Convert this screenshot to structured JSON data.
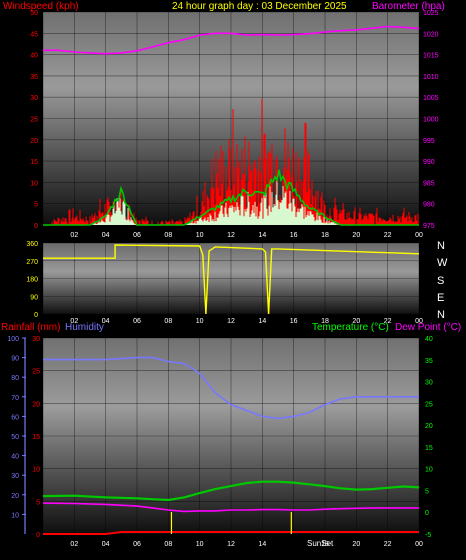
{
  "header": {
    "left": "Windspeed (kph)",
    "center": "24 hour graph day : 03 December 2025",
    "right": "Barometer (hpa)"
  },
  "colors": {
    "red": "#ff0000",
    "magenta": "#ff00ff",
    "yellow": "#ffff00",
    "green": "#00c800",
    "lightgreen": "#d8f8d0",
    "blue": "#7878ff",
    "axis_text": "#ffffff"
  },
  "x_ticks": [
    "02",
    "04",
    "06",
    "08",
    "10",
    "12",
    "14",
    "16",
    "18",
    "20",
    "22",
    "00"
  ],
  "panel1": {
    "left_ticks": [
      "0",
      "5",
      "10",
      "15",
      "20",
      "25",
      "30",
      "35",
      "40",
      "45",
      "50"
    ],
    "right_ticks": [
      "975",
      "980",
      "985",
      "990",
      "995",
      "1000",
      "1005",
      "1010",
      "1015",
      "1020",
      "1025"
    ]
  },
  "panel2": {
    "left_ticks": [
      "0",
      "90",
      "180",
      "270",
      "360"
    ],
    "compass": [
      "N",
      "W",
      "S",
      "E",
      "N"
    ]
  },
  "panel3": {
    "header_left_rain": "Rainfall (mm)",
    "header_left_hum": "Humidity",
    "header_right_temp": "Temperature (°C)",
    "header_right_dew": "Dew Point (°C)",
    "hum_ticks": [
      "10",
      "20",
      "30",
      "40",
      "50",
      "60",
      "70",
      "80",
      "90",
      "100"
    ],
    "rain_ticks": [
      "0",
      "5",
      "10",
      "15",
      "20",
      "25",
      "30"
    ],
    "temp_ticks": [
      "-5",
      "0",
      "5",
      "10",
      "15",
      "20",
      "25",
      "30",
      "35",
      "40"
    ],
    "sun_label": "SunSet"
  },
  "chart_data": [
    {
      "type": "line",
      "title": "24 hour graph day : 03 December 2025",
      "x_unit": "hour",
      "xlim": [
        0,
        24
      ],
      "left_axis": "Windspeed (kph)",
      "left_ylim": [
        0,
        50
      ],
      "right_axis": "Barometer (hpa)",
      "right_ylim": [
        975,
        1025
      ],
      "series": [
        {
          "name": "Barometer (hpa)",
          "axis": "right",
          "x": [
            0,
            1,
            2,
            3,
            4,
            5,
            6,
            7,
            8,
            9,
            10,
            11,
            12,
            13,
            14,
            15,
            16,
            17,
            18,
            19,
            20,
            21,
            22,
            23,
            24
          ],
          "values": [
            1016,
            1016,
            1015.6,
            1015.4,
            1015.2,
            1015.4,
            1015.9,
            1016.8,
            1017.8,
            1018.5,
            1019.6,
            1020,
            1020,
            1019.6,
            1019.7,
            1019.6,
            1019.7,
            1019.9,
            1020.3,
            1020.6,
            1020.8,
            1021.2,
            1021.6,
            1021.4,
            1021.1
          ]
        }
      ],
      "wind_gust_profile": {
        "x": [
          0,
          1,
          2,
          3,
          4,
          5,
          6,
          7,
          8,
          9,
          10,
          11,
          12,
          13,
          14,
          15,
          16,
          17,
          18,
          19,
          20,
          21,
          22,
          23,
          24
        ],
        "values": [
          0,
          2,
          3,
          2,
          6,
          8,
          2,
          1,
          1,
          1,
          6,
          18,
          20,
          21,
          22,
          25,
          20,
          17,
          6,
          4,
          3,
          3,
          3,
          3,
          3
        ]
      },
      "wind_avg_profile": {
        "x": [
          0,
          1,
          2,
          3,
          4,
          5,
          6,
          7,
          8,
          9,
          10,
          11,
          12,
          13,
          14,
          15,
          16,
          17,
          18,
          19,
          20,
          21,
          22,
          23,
          24
        ],
        "values": [
          0,
          0,
          0,
          0,
          2,
          8,
          0,
          0,
          0,
          0,
          2,
          4,
          6,
          8,
          7,
          12,
          8,
          4,
          2,
          0,
          0,
          0,
          0,
          0,
          0
        ]
      }
    },
    {
      "type": "line",
      "axis": "Wind direction (degrees)",
      "ylim": [
        0,
        360
      ],
      "x_unit": "hour",
      "xlim": [
        0,
        24
      ],
      "series": [
        {
          "x": [
            0,
            4.6,
            4.6,
            10,
            10.2,
            10.4,
            10.6,
            11,
            14,
            14.2,
            14.4,
            14.6,
            15,
            24
          ],
          "values": [
            283,
            283,
            350,
            345,
            300,
            0,
            320,
            340,
            330,
            315,
            0,
            330,
            330,
            305
          ]
        }
      ]
    },
    {
      "type": "line",
      "x_unit": "hour",
      "xlim": [
        0,
        24
      ],
      "axes": {
        "humidity_ylim": [
          0,
          100
        ],
        "rain_ylim": [
          0,
          30
        ],
        "temp_ylim": [
          -5,
          40
        ]
      },
      "series": [
        {
          "name": "Humidity",
          "axis": "humidity",
          "x": [
            0,
            2,
            4,
            6,
            7,
            8,
            9,
            10,
            11,
            12,
            13,
            14,
            15,
            16,
            17,
            18,
            19,
            20,
            21,
            22,
            23,
            24
          ],
          "values": [
            89,
            89,
            89,
            90,
            90,
            88,
            87,
            82,
            72,
            66,
            63,
            60,
            59,
            60,
            62,
            66,
            69,
            70,
            70,
            70,
            70,
            70
          ]
        },
        {
          "name": "Temperature (°C)",
          "axis": "temp",
          "x": [
            0,
            2,
            4,
            6,
            7,
            8,
            9,
            10,
            11,
            12,
            13,
            14,
            15,
            16,
            17,
            18,
            19,
            20,
            21,
            22,
            23,
            24
          ],
          "values": [
            3.7,
            3.8,
            3.4,
            3.2,
            3.0,
            2.8,
            3.4,
            4.4,
            5.3,
            6.0,
            6.7,
            7.0,
            7.0,
            6.8,
            6.4,
            6.0,
            5.5,
            5.2,
            5.3,
            5.6,
            5.9,
            5.7
          ]
        },
        {
          "name": "Dew Point (°C)",
          "axis": "temp",
          "x": [
            0,
            2,
            4,
            6,
            7,
            8,
            9,
            10,
            11,
            12,
            13,
            14,
            15,
            16,
            17,
            18,
            19,
            20,
            21,
            22,
            23,
            24
          ],
          "values": [
            2.1,
            2.0,
            1.8,
            1.4,
            1.0,
            0.5,
            0.2,
            0.3,
            0.3,
            0.5,
            0.5,
            0.6,
            0.6,
            0.5,
            0.5,
            0.7,
            0.8,
            0.9,
            1.0,
            1.0,
            1.0,
            1.0
          ]
        },
        {
          "name": "Rainfall (mm)",
          "axis": "rain",
          "x": [
            0,
            4,
            5,
            24
          ],
          "values": [
            0,
            0,
            0.3,
            0.3
          ]
        }
      ],
      "sunrise_hour": 8.2,
      "sunset_hour": 15.85
    }
  ]
}
